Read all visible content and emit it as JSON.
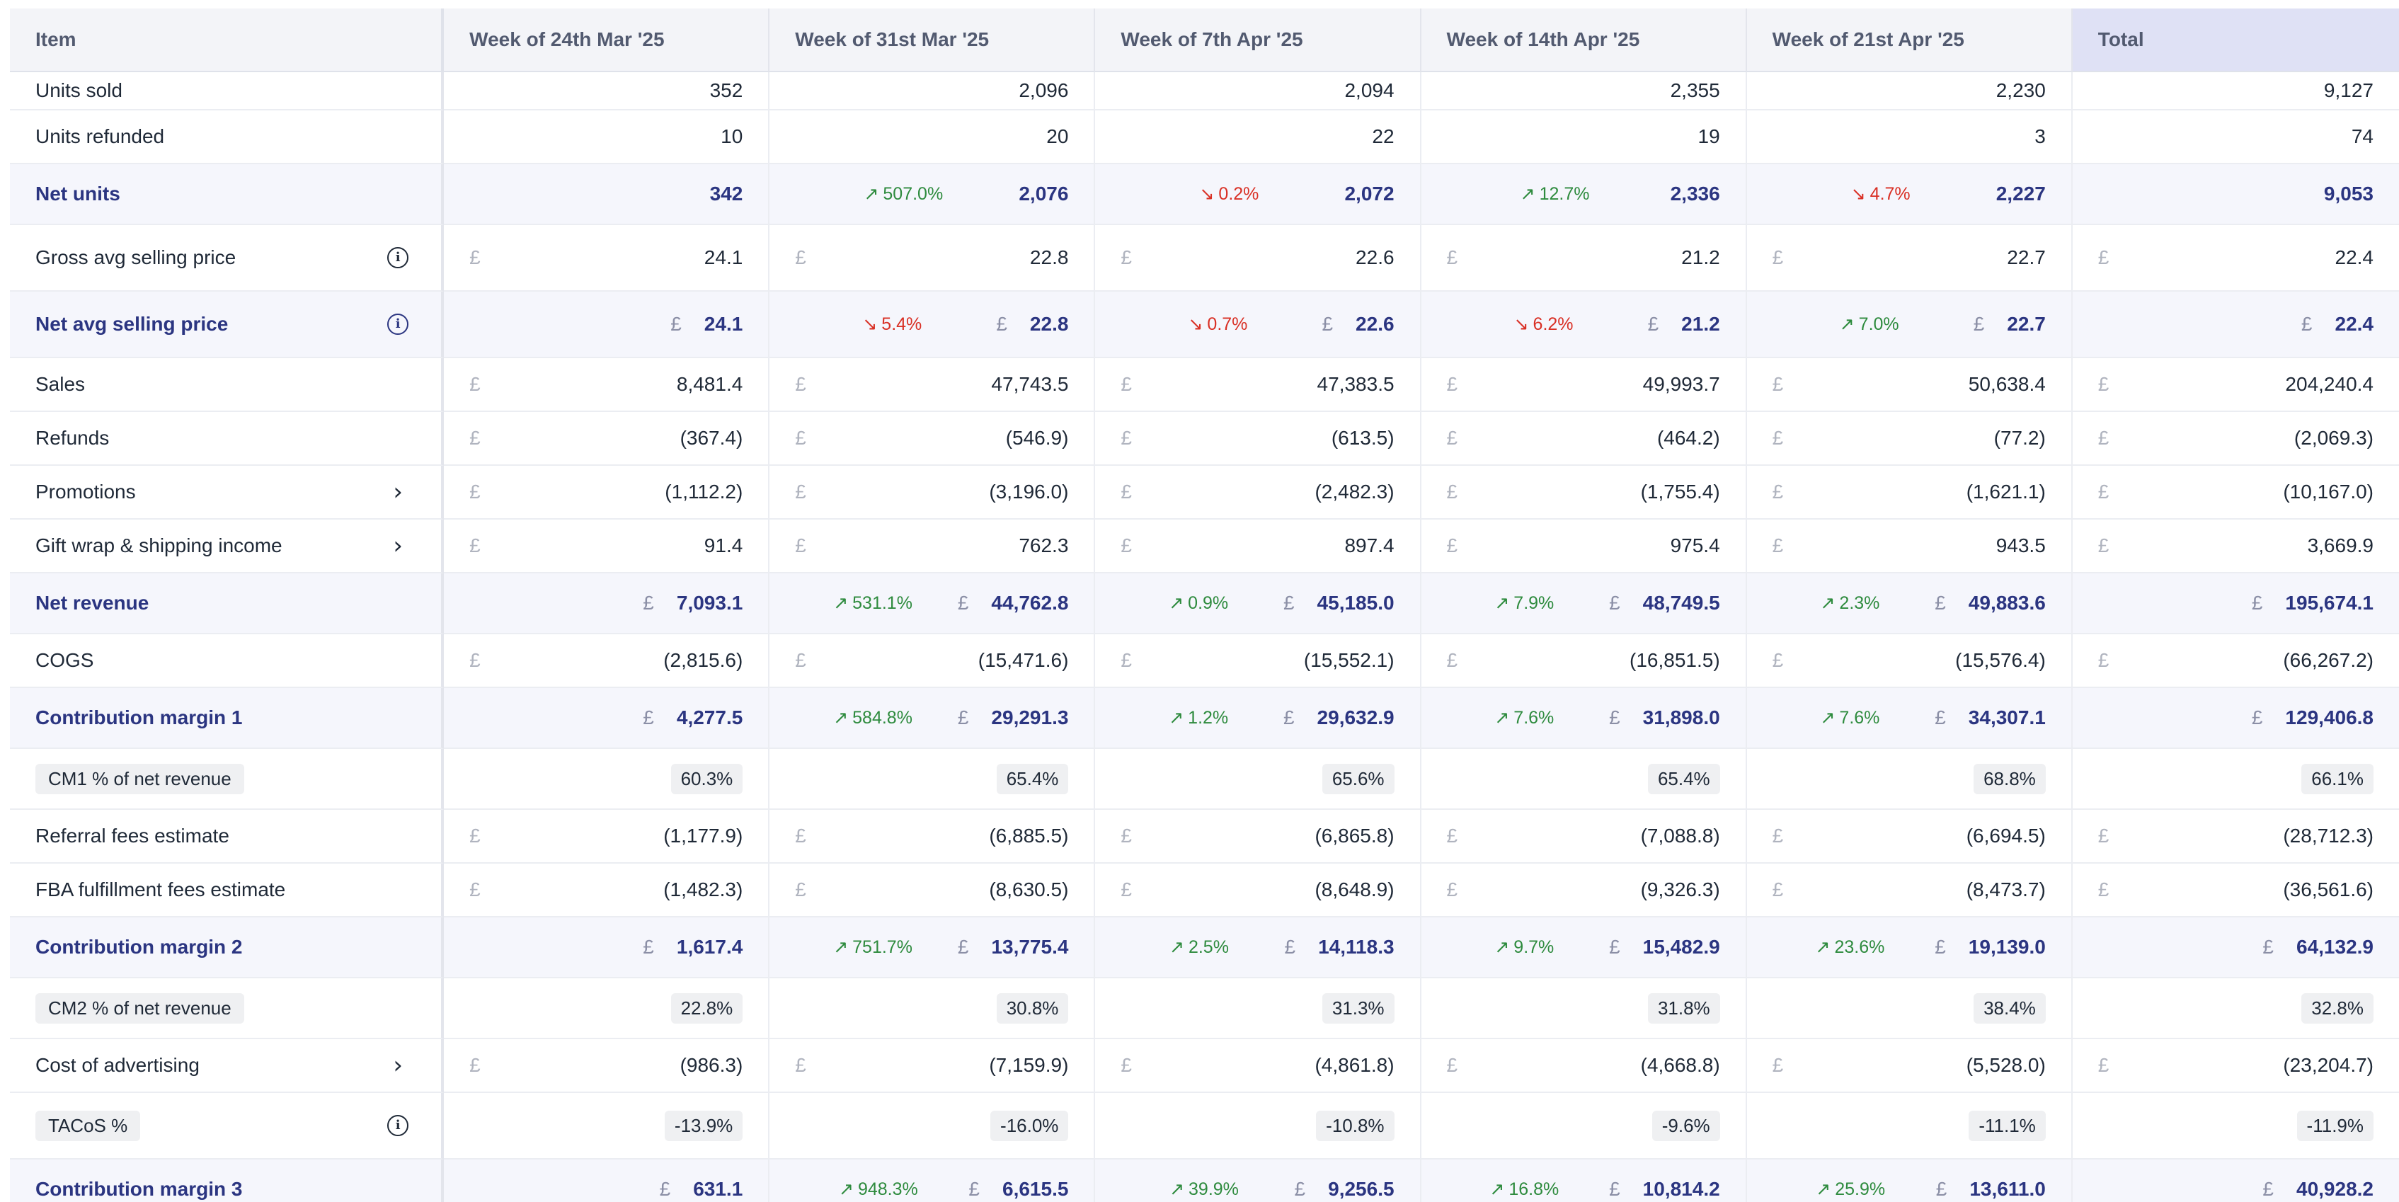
{
  "header": {
    "item": "Item",
    "weeks": [
      "Week of 24th Mar '25",
      "Week of 31st Mar '25",
      "Week of 7th Apr '25",
      "Week of 14th Apr '25",
      "Week of 21st Apr '25"
    ],
    "total": "Total"
  },
  "currency_symbol": "£",
  "rows": [
    {
      "label": "Units sold",
      "style": "plain",
      "currency": false,
      "height": 54,
      "values": [
        "352",
        "2,096",
        "2,094",
        "2,355",
        "2,230"
      ],
      "total": "9,127"
    },
    {
      "label": "Units refunded",
      "style": "plain",
      "currency": false,
      "height": 76,
      "values": [
        "10",
        "20",
        "22",
        "19",
        "3"
      ],
      "total": "74"
    },
    {
      "label": "Net units",
      "style": "highlight",
      "currency": false,
      "height": 86,
      "values": [
        "342",
        "2,076",
        "2,072",
        "2,336",
        "2,227"
      ],
      "changes": [
        null,
        {
          "dir": "up",
          "text": "507.0%"
        },
        {
          "dir": "down",
          "text": "0.2%"
        },
        {
          "dir": "up",
          "text": "12.7%"
        },
        {
          "dir": "down",
          "text": "4.7%"
        }
      ],
      "total": "9,053"
    },
    {
      "label": "Gross avg selling price",
      "style": "plain",
      "currency": true,
      "icon": "info",
      "height": 94,
      "values": [
        "24.1",
        "22.8",
        "22.6",
        "21.2",
        "22.7"
      ],
      "total": "22.4"
    },
    {
      "label": "Net avg selling price",
      "style": "highlight",
      "currency": true,
      "icon": "info",
      "height": 94,
      "values": [
        "24.1",
        "22.8",
        "22.6",
        "21.2",
        "22.7"
      ],
      "changes": [
        null,
        {
          "dir": "down",
          "text": "5.4%"
        },
        {
          "dir": "down",
          "text": "0.7%"
        },
        {
          "dir": "down",
          "text": "6.2%"
        },
        {
          "dir": "up",
          "text": "7.0%"
        }
      ],
      "total": "22.4"
    },
    {
      "label": "Sales",
      "style": "plain",
      "currency": true,
      "height": 76,
      "values": [
        "8,481.4",
        "47,743.5",
        "47,383.5",
        "49,993.7",
        "50,638.4"
      ],
      "total": "204,240.4"
    },
    {
      "label": "Refunds",
      "style": "plain",
      "currency": true,
      "height": 76,
      "values": [
        "(367.4)",
        "(546.9)",
        "(613.5)",
        "(464.2)",
        "(77.2)"
      ],
      "total": "(2,069.3)"
    },
    {
      "label": "Promotions",
      "style": "plain",
      "currency": true,
      "icon": "chevron",
      "height": 76,
      "values": [
        "(1,112.2)",
        "(3,196.0)",
        "(2,482.3)",
        "(1,755.4)",
        "(1,621.1)"
      ],
      "total": "(10,167.0)"
    },
    {
      "label": "Gift wrap & shipping income",
      "style": "plain",
      "currency": true,
      "icon": "chevron",
      "height": 76,
      "values": [
        "91.4",
        "762.3",
        "897.4",
        "975.4",
        "943.5"
      ],
      "total": "3,669.9"
    },
    {
      "label": "Net revenue",
      "style": "highlight",
      "currency": true,
      "height": 86,
      "values": [
        "7,093.1",
        "44,762.8",
        "45,185.0",
        "48,749.5",
        "49,883.6"
      ],
      "changes": [
        null,
        {
          "dir": "up",
          "text": "531.1%"
        },
        {
          "dir": "up",
          "text": "0.9%"
        },
        {
          "dir": "up",
          "text": "7.9%"
        },
        {
          "dir": "up",
          "text": "2.3%"
        }
      ],
      "total": "195,674.1"
    },
    {
      "label": "COGS",
      "style": "plain",
      "currency": true,
      "height": 76,
      "values": [
        "(2,815.6)",
        "(15,471.6)",
        "(15,552.1)",
        "(16,851.5)",
        "(15,576.4)"
      ],
      "total": "(66,267.2)"
    },
    {
      "label": "Contribution margin 1",
      "style": "highlight",
      "currency": true,
      "height": 86,
      "values": [
        "4,277.5",
        "29,291.3",
        "29,632.9",
        "31,898.0",
        "34,307.1"
      ],
      "changes": [
        null,
        {
          "dir": "up",
          "text": "584.8%"
        },
        {
          "dir": "up",
          "text": "1.2%"
        },
        {
          "dir": "up",
          "text": "7.6%"
        },
        {
          "dir": "up",
          "text": "7.6%"
        }
      ],
      "total": "129,406.8"
    },
    {
      "label": "CM1 % of net revenue",
      "style": "pill",
      "currency": false,
      "height": 86,
      "values": [
        "60.3%",
        "65.4%",
        "65.6%",
        "65.4%",
        "68.8%"
      ],
      "total": "66.1%"
    },
    {
      "label": "Referral fees estimate",
      "style": "plain",
      "currency": true,
      "height": 76,
      "values": [
        "(1,177.9)",
        "(6,885.5)",
        "(6,865.8)",
        "(7,088.8)",
        "(6,694.5)"
      ],
      "total": "(28,712.3)"
    },
    {
      "label": "FBA fulfillment fees estimate",
      "style": "plain",
      "currency": true,
      "height": 76,
      "values": [
        "(1,482.3)",
        "(8,630.5)",
        "(8,648.9)",
        "(9,326.3)",
        "(8,473.7)"
      ],
      "total": "(36,561.6)"
    },
    {
      "label": "Contribution margin 2",
      "style": "highlight",
      "currency": true,
      "height": 86,
      "values": [
        "1,617.4",
        "13,775.4",
        "14,118.3",
        "15,482.9",
        "19,139.0"
      ],
      "changes": [
        null,
        {
          "dir": "up",
          "text": "751.7%"
        },
        {
          "dir": "up",
          "text": "2.5%"
        },
        {
          "dir": "up",
          "text": "9.7%"
        },
        {
          "dir": "up",
          "text": "23.6%"
        }
      ],
      "total": "64,132.9"
    },
    {
      "label": "CM2 % of net revenue",
      "style": "pill",
      "currency": false,
      "height": 86,
      "values": [
        "22.8%",
        "30.8%",
        "31.3%",
        "31.8%",
        "38.4%"
      ],
      "total": "32.8%"
    },
    {
      "label": "Cost of advertising",
      "style": "plain",
      "currency": true,
      "icon": "chevron",
      "height": 76,
      "values": [
        "(986.3)",
        "(7,159.9)",
        "(4,861.8)",
        "(4,668.8)",
        "(5,528.0)"
      ],
      "total": "(23,204.7)"
    },
    {
      "label": "TACoS %",
      "style": "pill",
      "currency": false,
      "icon": "info",
      "height": 94,
      "values": [
        "-13.9%",
        "-16.0%",
        "-10.8%",
        "-9.6%",
        "-11.1%"
      ],
      "total": "-11.9%"
    },
    {
      "label": "Contribution margin 3",
      "style": "highlight",
      "currency": true,
      "height": 86,
      "values": [
        "631.1",
        "6,615.5",
        "9,256.5",
        "10,814.2",
        "13,611.0"
      ],
      "changes": [
        null,
        {
          "dir": "up",
          "text": "948.3%"
        },
        {
          "dir": "up",
          "text": "39.9%"
        },
        {
          "dir": "up",
          "text": "16.8%"
        },
        {
          "dir": "up",
          "text": "25.9%"
        }
      ],
      "total": "40,928.2"
    }
  ]
}
